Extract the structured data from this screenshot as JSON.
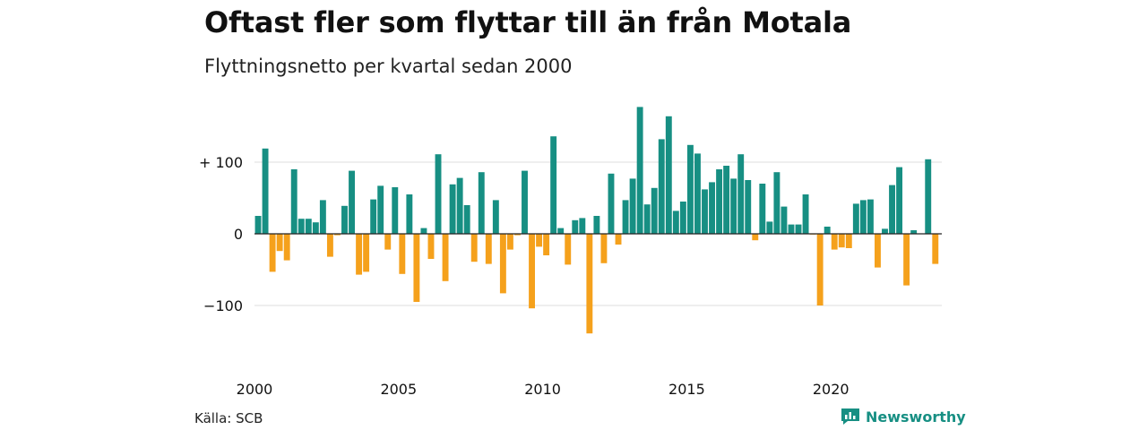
{
  "title": "Oftast fler som flyttar till än från Motala",
  "subtitle": "Flyttningsnetto per kvartal sedan 2000",
  "source": "Källa: SCB",
  "brand": {
    "name": "Newsworthy",
    "icon": "newsworthy-logo-icon",
    "color": "#178f83"
  },
  "colors": {
    "positive": "#178f83",
    "negative": "#f5a11c",
    "grid": "#dddddd",
    "zero": "#222222"
  },
  "chart_data": {
    "type": "bar",
    "title": "Oftast fler som flyttar till än från Motala",
    "subtitle": "Flyttningsnetto per kvartal sedan 2000",
    "xlabel": "",
    "ylabel": "",
    "ylim": [
      -140,
      180
    ],
    "y_ticks": [
      {
        "value": 100,
        "label": "+ 100"
      },
      {
        "value": 0,
        "label": "0"
      },
      {
        "value": -100,
        "label": "−100"
      }
    ],
    "x_ticks": [
      "2000",
      "2005",
      "2010",
      "2015",
      "2020"
    ],
    "start_year": 2000,
    "grid": true,
    "values": [
      25,
      119,
      -53,
      -24,
      -37,
      90,
      21,
      21,
      16,
      47,
      -32,
      -2,
      39,
      88,
      -57,
      -53,
      48,
      67,
      -22,
      65,
      -56,
      55,
      -95,
      8,
      -35,
      111,
      -66,
      69,
      78,
      40,
      -39,
      86,
      -42,
      47,
      -83,
      -22,
      -2,
      88,
      -104,
      -18,
      -30,
      136,
      8,
      -43,
      19,
      22,
      -139,
      25,
      -41,
      84,
      -15,
      47,
      77,
      177,
      41,
      64,
      132,
      164,
      32,
      45,
      124,
      112,
      62,
      72,
      90,
      95,
      77,
      111,
      75,
      -9,
      70,
      17,
      86,
      38,
      13,
      13,
      55,
      -1,
      -100,
      10,
      -22,
      -19,
      -20,
      42,
      47,
      48,
      -47,
      7,
      68,
      93,
      -72,
      5,
      0,
      104,
      -42
    ]
  }
}
